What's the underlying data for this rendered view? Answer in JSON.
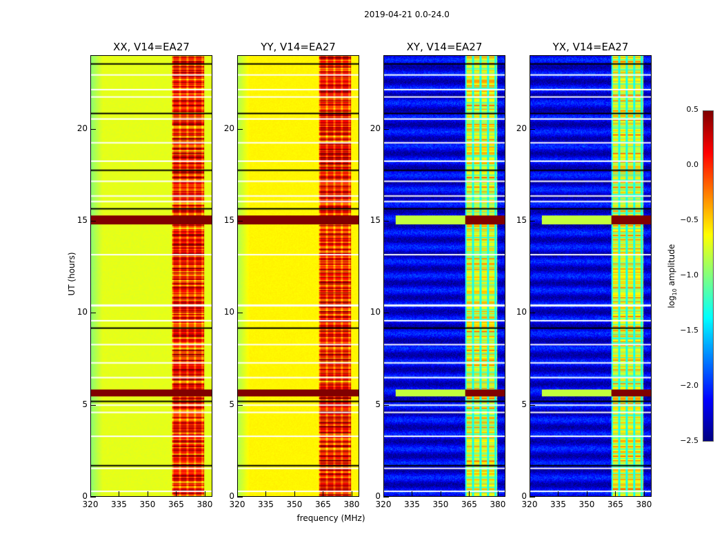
{
  "chart_data": {
    "type": "heatmap",
    "suptitle": "2019-04-21 0.0-24.0",
    "xlabel": "frequency (MHz)",
    "ylabel": "UT (hours)",
    "xlim": [
      320,
      384
    ],
    "ylim": [
      0,
      24
    ],
    "xticks": [
      "320",
      "335",
      "350",
      "365",
      "380"
    ],
    "yticks": [
      "0",
      "5",
      "10",
      "15",
      "20"
    ],
    "xtick_values": [
      320,
      335,
      350,
      365,
      380
    ],
    "ytick_values": [
      0,
      5,
      10,
      15,
      20
    ],
    "colormap": "jet",
    "clim": [
      -2.5,
      0.5
    ],
    "colorbar": {
      "label": "log10 amplitude",
      "label_main": "log",
      "label_sub": "10",
      "label_rest": " amplitude",
      "ticks": [
        "0.5",
        "0.0",
        "−0.5",
        "−1.0",
        "−1.5",
        "−2.0",
        "−2.5"
      ],
      "tick_values": [
        0.5,
        0.0,
        -0.5,
        -1.0,
        -1.5,
        -2.0,
        -2.5
      ]
    },
    "panels": [
      {
        "title": "XX, V14=EA27",
        "baseline": -0.7,
        "rfi_band_level": 0.1
      },
      {
        "title": "YY, V14=EA27",
        "baseline": -0.6,
        "rfi_band_level": 0.15
      },
      {
        "title": "XY, V14=EA27",
        "baseline": -2.2,
        "rfi_band_level": -0.7
      },
      {
        "title": "YX, V14=EA27",
        "baseline": -2.2,
        "rfi_band_level": -0.7
      }
    ],
    "rfi_band_mhz": [
      363,
      380
    ],
    "rfi_channels_mhz": [
      363,
      367,
      371,
      375,
      379
    ],
    "saturated_hours": [
      [
        5.45,
        5.85
      ],
      [
        14.85,
        15.3
      ]
    ],
    "flagged_hours": [
      0.3,
      1.55,
      1.7,
      3.3,
      4.6,
      5.0,
      5.2,
      6.5,
      7.3,
      8.3,
      9.2,
      9.6,
      10.45,
      13.2,
      15.7,
      16.1,
      16.4,
      17.2,
      17.8,
      18.3,
      19.3,
      20.6,
      20.9,
      21.8,
      22.2,
      23.0,
      23.6
    ]
  }
}
